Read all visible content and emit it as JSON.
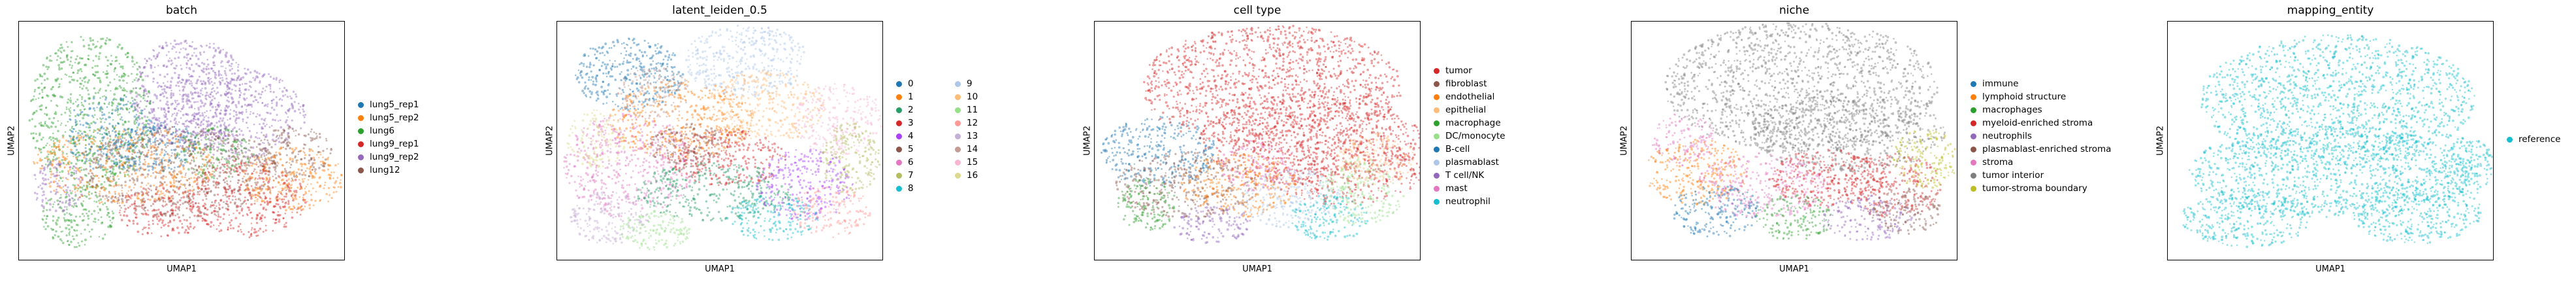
{
  "chart_data": [
    {
      "type": "scatter",
      "title": "batch",
      "xlabel": "UMAP1",
      "ylabel": "UMAP2",
      "legend_position": "right",
      "grid": false,
      "legend_columns": 1,
      "series": [
        {
          "name": "lung5_rep1",
          "color": "#1f77b4"
        },
        {
          "name": "lung5_rep2",
          "color": "#ff7f0e"
        },
        {
          "name": "lung6",
          "color": "#2ca02c"
        },
        {
          "name": "lung9_rep1",
          "color": "#d62728"
        },
        {
          "name": "lung9_rep2",
          "color": "#9467bd"
        },
        {
          "name": "lung12",
          "color": "#8c564b"
        }
      ]
    },
    {
      "type": "scatter",
      "title": "latent_leiden_0.5",
      "xlabel": "UMAP1",
      "ylabel": "UMAP2",
      "legend_position": "right",
      "grid": false,
      "legend_columns": 2,
      "series": [
        {
          "name": "0",
          "color": "#1f77b4"
        },
        {
          "name": "1",
          "color": "#ff7f0e"
        },
        {
          "name": "2",
          "color": "#279e68"
        },
        {
          "name": "3",
          "color": "#d62728"
        },
        {
          "name": "4",
          "color": "#aa40fc"
        },
        {
          "name": "5",
          "color": "#8c564b"
        },
        {
          "name": "6",
          "color": "#e377c2"
        },
        {
          "name": "7",
          "color": "#b5bd61"
        },
        {
          "name": "8",
          "color": "#17becf"
        },
        {
          "name": "9",
          "color": "#aec7e8"
        },
        {
          "name": "10",
          "color": "#ffbb78"
        },
        {
          "name": "11",
          "color": "#98df8a"
        },
        {
          "name": "12",
          "color": "#ff9896"
        },
        {
          "name": "13",
          "color": "#c5b0d5"
        },
        {
          "name": "14",
          "color": "#c49c94"
        },
        {
          "name": "15",
          "color": "#f7b6d2"
        },
        {
          "name": "16",
          "color": "#dbdb8d"
        }
      ]
    },
    {
      "type": "scatter",
      "title": "cell type",
      "xlabel": "UMAP1",
      "ylabel": "UMAP2",
      "legend_position": "right",
      "grid": false,
      "legend_columns": 1,
      "series": [
        {
          "name": "tumor",
          "color": "#d62728"
        },
        {
          "name": "fibroblast",
          "color": "#8c564b"
        },
        {
          "name": "endothelial",
          "color": "#ff7f0e"
        },
        {
          "name": "epithelial",
          "color": "#ffbb78"
        },
        {
          "name": "macrophage",
          "color": "#2ca02c"
        },
        {
          "name": "DC/monocyte",
          "color": "#98df8a"
        },
        {
          "name": "B-cell",
          "color": "#1f77b4"
        },
        {
          "name": "plasmablast",
          "color": "#aec7e8"
        },
        {
          "name": "T cell/NK",
          "color": "#9467bd"
        },
        {
          "name": "mast",
          "color": "#e377c2"
        },
        {
          "name": "neutrophil",
          "color": "#17becf"
        }
      ]
    },
    {
      "type": "scatter",
      "title": "niche",
      "xlabel": "UMAP1",
      "ylabel": "UMAP2",
      "legend_position": "right",
      "grid": false,
      "legend_columns": 1,
      "series": [
        {
          "name": "immune",
          "color": "#1f77b4"
        },
        {
          "name": "lymphoid structure",
          "color": "#ff7f0e"
        },
        {
          "name": "macrophages",
          "color": "#2ca02c"
        },
        {
          "name": "myeloid-enriched stroma",
          "color": "#d62728"
        },
        {
          "name": "neutrophils",
          "color": "#9467bd"
        },
        {
          "name": "plasmablast-enriched stroma",
          "color": "#8c564b"
        },
        {
          "name": "stroma",
          "color": "#e377c2"
        },
        {
          "name": "tumor interior",
          "color": "#7f7f7f"
        },
        {
          "name": "tumor-stroma boundary",
          "color": "#bcbd22"
        }
      ]
    },
    {
      "type": "scatter",
      "title": "mapping_entity",
      "xlabel": "UMAP1",
      "ylabel": "UMAP2",
      "legend_position": "right",
      "grid": false,
      "legend_columns": 1,
      "series": [
        {
          "name": "reference",
          "color": "#17becf"
        }
      ]
    }
  ]
}
